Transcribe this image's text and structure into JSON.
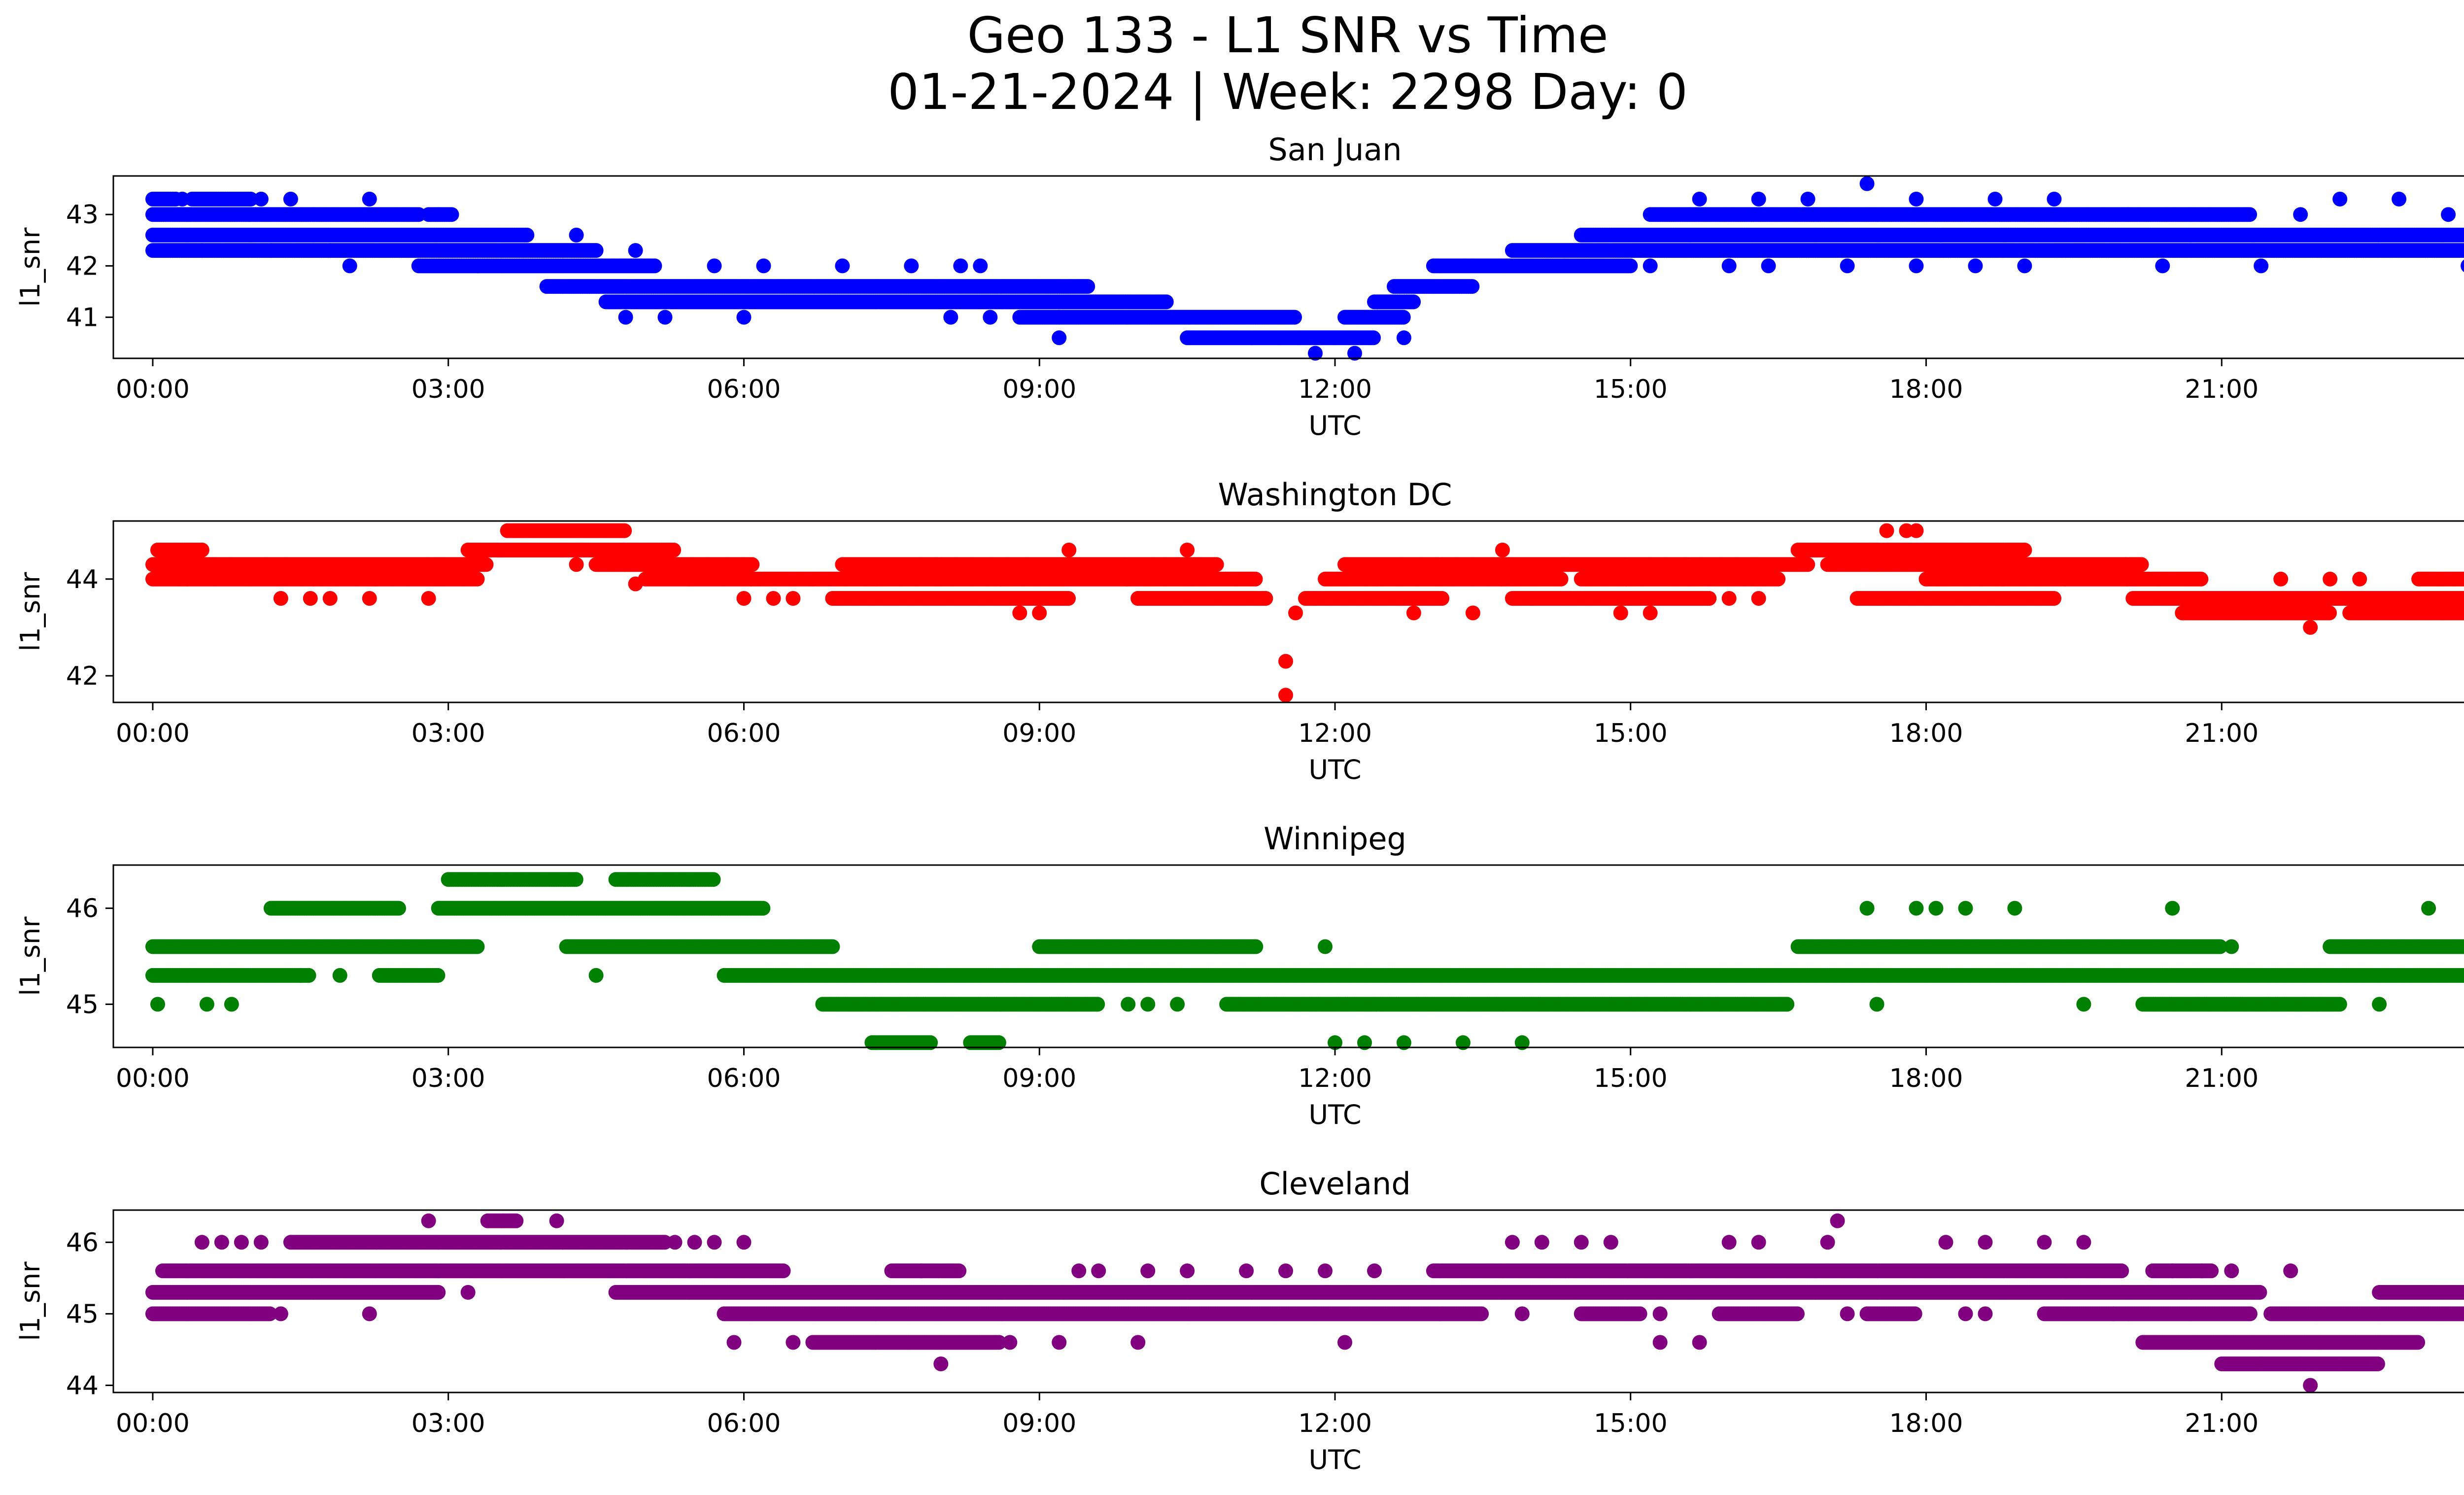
{
  "figure": {
    "title_line1": "Geo 133 - L1 SNR vs Time",
    "title_line2": "01-21-2024 | Week: 2298 Day: 0"
  },
  "chart_data": [
    {
      "type": "scatter",
      "title": "San Juan",
      "xlabel": "UTC",
      "ylabel": "l1_snr",
      "color": "#0000ff",
      "xlim": [
        -0.4,
        24.4
      ],
      "ylim": [
        40.2,
        43.75
      ],
      "x_ticks": [
        "00:00",
        "03:00",
        "06:00",
        "09:00",
        "12:00",
        "15:00",
        "18:00",
        "21:00",
        "00:00"
      ],
      "x_tick_hours": [
        0,
        3,
        6,
        9,
        12,
        15,
        18,
        21,
        24
      ],
      "y_ticks": [
        41,
        42,
        43
      ],
      "bands": [
        {
          "y": 43.3,
          "x": [
            [
              0,
              0.25
            ],
            [
              0.4,
              1.0
            ]
          ]
        },
        {
          "y": 43.0,
          "x": [
            [
              0,
              2.7
            ],
            [
              2.8,
              3.05
            ],
            [
              15.2,
              21.3
            ]
          ]
        },
        {
          "y": 42.6,
          "x": [
            [
              0,
              3.8
            ],
            [
              14.5,
              24
            ]
          ]
        },
        {
          "y": 42.3,
          "x": [
            [
              0,
              4.5
            ],
            [
              13.8,
              24
            ]
          ]
        },
        {
          "y": 42.0,
          "x": [
            [
              2.7,
              5.1
            ],
            [
              13.0,
              15.0
            ]
          ]
        },
        {
          "y": 41.6,
          "x": [
            [
              4.0,
              9.5
            ],
            [
              12.6,
              13.4
            ]
          ]
        },
        {
          "y": 41.3,
          "x": [
            [
              4.6,
              10.3
            ],
            [
              12.4,
              12.8
            ]
          ]
        },
        {
          "y": 41.0,
          "x": [
            [
              8.8,
              11.6
            ],
            [
              12.1,
              12.7
            ]
          ]
        },
        {
          "y": 40.6,
          "x": [
            [
              10.5,
              12.4
            ]
          ]
        }
      ],
      "points": [
        [
          0.3,
          43.3
        ],
        [
          1.1,
          43.3
        ],
        [
          1.4,
          43.3
        ],
        [
          2.2,
          43.3
        ],
        [
          1.2,
          42.3
        ],
        [
          1.8,
          42.3
        ],
        [
          2.0,
          42.0
        ],
        [
          3.3,
          42.0
        ],
        [
          0.5,
          42.3
        ],
        [
          4.3,
          42.6
        ],
        [
          4.9,
          42.3
        ],
        [
          5.7,
          42.0
        ],
        [
          6.2,
          42.0
        ],
        [
          7.0,
          42.0
        ],
        [
          7.7,
          42.0
        ],
        [
          8.2,
          42.0
        ],
        [
          8.4,
          42.0
        ],
        [
          4.8,
          41.0
        ],
        [
          5.2,
          41.0
        ],
        [
          6.0,
          41.0
        ],
        [
          8.1,
          41.0
        ],
        [
          8.5,
          41.0
        ],
        [
          9.2,
          41.0
        ],
        [
          9.2,
          40.6
        ],
        [
          11.8,
          40.3
        ],
        [
          12.2,
          40.3
        ],
        [
          12.7,
          40.6
        ],
        [
          15.2,
          42.0
        ],
        [
          16.0,
          42.0
        ],
        [
          16.4,
          42.0
        ],
        [
          17.2,
          42.0
        ],
        [
          17.9,
          42.0
        ],
        [
          18.5,
          42.0
        ],
        [
          19.0,
          42.0
        ],
        [
          20.4,
          42.0
        ],
        [
          21.4,
          42.0
        ],
        [
          23.5,
          42.0
        ],
        [
          17.4,
          43.6
        ],
        [
          15.7,
          43.3
        ],
        [
          16.3,
          43.3
        ],
        [
          16.8,
          43.3
        ],
        [
          17.9,
          43.3
        ],
        [
          18.7,
          43.3
        ],
        [
          19.3,
          43.3
        ],
        [
          21.8,
          43.0
        ],
        [
          22.2,
          43.3
        ],
        [
          22.8,
          43.3
        ],
        [
          23.3,
          43.0
        ]
      ]
    },
    {
      "type": "scatter",
      "title": "Washington DC",
      "xlabel": "UTC",
      "ylabel": "l1_snr",
      "color": "#ff0000",
      "xlim": [
        -0.4,
        24.4
      ],
      "ylim": [
        41.45,
        45.2
      ],
      "x_ticks": [
        "00:00",
        "03:00",
        "06:00",
        "09:00",
        "12:00",
        "15:00",
        "18:00",
        "21:00",
        "00:00"
      ],
      "x_tick_hours": [
        0,
        3,
        6,
        9,
        12,
        15,
        18,
        21,
        24
      ],
      "y_ticks": [
        42,
        44
      ],
      "bands": [
        {
          "y": 45.0,
          "x": [
            [
              3.6,
              4.8
            ]
          ]
        },
        {
          "y": 44.6,
          "x": [
            [
              0.05,
              0.5
            ],
            [
              3.2,
              5.3
            ],
            [
              16.7,
              19.0
            ]
          ]
        },
        {
          "y": 44.3,
          "x": [
            [
              0,
              3.4
            ],
            [
              4.5,
              6.1
            ],
            [
              7.0,
              10.8
            ],
            [
              12.1,
              16.8
            ],
            [
              17.0,
              20.2
            ]
          ]
        },
        {
          "y": 44.0,
          "x": [
            [
              0,
              3.3
            ],
            [
              5.0,
              11.2
            ],
            [
              11.9,
              14.3
            ],
            [
              14.5,
              16.5
            ],
            [
              18.0,
              20.8
            ],
            [
              23.0,
              24
            ]
          ]
        },
        {
          "y": 43.6,
          "x": [
            [
              6.9,
              9.3
            ],
            [
              10.0,
              11.3
            ],
            [
              11.7,
              13.1
            ],
            [
              13.8,
              15.8
            ],
            [
              17.3,
              19.3
            ],
            [
              20.1,
              24
            ]
          ]
        },
        {
          "y": 43.3,
          "x": [
            [
              20.6,
              22.1
            ],
            [
              22.3,
              23.5
            ]
          ]
        }
      ],
      "points": [
        [
          1.3,
          43.6
        ],
        [
          1.6,
          43.6
        ],
        [
          1.8,
          43.6
        ],
        [
          2.2,
          43.6
        ],
        [
          2.8,
          43.6
        ],
        [
          6.0,
          43.6
        ],
        [
          6.3,
          43.6
        ],
        [
          6.5,
          43.6
        ],
        [
          8.8,
          43.3
        ],
        [
          9.0,
          43.3
        ],
        [
          10.0,
          43.6
        ],
        [
          11.5,
          42.3
        ],
        [
          11.5,
          41.6
        ],
        [
          11.6,
          43.3
        ],
        [
          11.8,
          43.6
        ],
        [
          12.8,
          43.3
        ],
        [
          13.4,
          43.3
        ],
        [
          13.7,
          44.6
        ],
        [
          14.0,
          43.6
        ],
        [
          14.9,
          43.3
        ],
        [
          15.2,
          43.3
        ],
        [
          15.0,
          43.6
        ],
        [
          16.0,
          43.6
        ],
        [
          16.3,
          43.6
        ],
        [
          17.6,
          45.0
        ],
        [
          17.8,
          45.0
        ],
        [
          17.9,
          45.0
        ],
        [
          19.0,
          44.6
        ],
        [
          21.6,
          44.0
        ],
        [
          21.9,
          43.0
        ],
        [
          22.1,
          44.0
        ],
        [
          22.4,
          44.0
        ],
        [
          24.0,
          43.3
        ],
        [
          4.3,
          44.3
        ],
        [
          4.9,
          43.9
        ],
        [
          9.3,
          44.6
        ],
        [
          10.5,
          44.6
        ]
      ]
    },
    {
      "type": "scatter",
      "title": "Winnipeg",
      "xlabel": "UTC",
      "ylabel": "l1_snr",
      "color": "#008000",
      "xlim": [
        -0.4,
        24.4
      ],
      "ylim": [
        44.55,
        46.45
      ],
      "x_ticks": [
        "00:00",
        "03:00",
        "06:00",
        "09:00",
        "12:00",
        "15:00",
        "18:00",
        "21:00",
        "00:00"
      ],
      "x_tick_hours": [
        0,
        3,
        6,
        9,
        12,
        15,
        18,
        21,
        24
      ],
      "y_ticks": [
        45,
        46
      ],
      "bands": [
        {
          "y": 46.3,
          "x": [
            [
              3.0,
              4.3
            ],
            [
              4.7,
              5.7
            ]
          ]
        },
        {
          "y": 46.0,
          "x": [
            [
              1.2,
              2.5
            ],
            [
              2.9,
              6.2
            ]
          ]
        },
        {
          "y": 45.6,
          "x": [
            [
              0,
              3.3
            ],
            [
              4.2,
              6.9
            ],
            [
              9.0,
              11.2
            ],
            [
              16.7,
              21.0
            ],
            [
              22.1,
              24
            ]
          ]
        },
        {
          "y": 45.3,
          "x": [
            [
              0,
              1.6
            ],
            [
              2.3,
              2.9
            ],
            [
              5.8,
              24
            ]
          ]
        },
        {
          "y": 45.0,
          "x": [
            [
              6.8,
              9.6
            ],
            [
              10.9,
              16.6
            ],
            [
              20.2,
              22.2
            ]
          ]
        },
        {
          "y": 44.6,
          "x": [
            [
              7.3,
              7.9
            ],
            [
              8.3,
              8.6
            ]
          ]
        }
      ],
      "points": [
        [
          0.05,
          45.0
        ],
        [
          0.55,
          45.0
        ],
        [
          0.8,
          45.0
        ],
        [
          2.3,
          45.6
        ],
        [
          4.5,
          45.3
        ],
        [
          1.5,
          45.3
        ],
        [
          1.9,
          45.3
        ],
        [
          9.9,
          45.0
        ],
        [
          10.1,
          45.0
        ],
        [
          10.4,
          45.0
        ],
        [
          10.8,
          45.6
        ],
        [
          12.0,
          44.6
        ],
        [
          12.3,
          44.6
        ],
        [
          12.7,
          44.6
        ],
        [
          13.3,
          44.6
        ],
        [
          13.9,
          44.6
        ],
        [
          11.9,
          45.6
        ],
        [
          17.4,
          46.0
        ],
        [
          17.9,
          46.0
        ],
        [
          18.1,
          46.0
        ],
        [
          18.4,
          46.0
        ],
        [
          18.9,
          46.0
        ],
        [
          17.5,
          45.0
        ],
        [
          19.6,
          45.0
        ],
        [
          20.5,
          46.0
        ],
        [
          23.1,
          46.0
        ],
        [
          21.1,
          45.6
        ],
        [
          22.6,
          45.0
        ]
      ]
    },
    {
      "type": "scatter",
      "title": "Cleveland",
      "xlabel": "UTC",
      "ylabel": "l1_snr",
      "color": "#800080",
      "xlim": [
        -0.4,
        24.4
      ],
      "ylim": [
        43.9,
        46.45
      ],
      "x_ticks": [
        "00:00",
        "03:00",
        "06:00",
        "09:00",
        "12:00",
        "15:00",
        "18:00",
        "21:00",
        "00:00"
      ],
      "x_tick_hours": [
        0,
        3,
        6,
        9,
        12,
        15,
        18,
        21,
        24
      ],
      "y_ticks": [
        44,
        45,
        46
      ],
      "bands": [
        {
          "y": 46.3,
          "x": [
            [
              3.4,
              3.7
            ]
          ]
        },
        {
          "y": 46.0,
          "x": [
            [
              1.4,
              5.2
            ]
          ]
        },
        {
          "y": 45.6,
          "x": [
            [
              0.1,
              6.4
            ],
            [
              7.5,
              8.2
            ],
            [
              13.0,
              20.0
            ],
            [
              20.3,
              20.9
            ]
          ]
        },
        {
          "y": 45.3,
          "x": [
            [
              0,
              2.9
            ],
            [
              4.7,
              21.4
            ],
            [
              22.6,
              24
            ]
          ]
        },
        {
          "y": 45.0,
          "x": [
            [
              0,
              1.2
            ],
            [
              5.8,
              13.5
            ],
            [
              14.5,
              15.1
            ],
            [
              15.9,
              16.7
            ],
            [
              17.4,
              17.9
            ],
            [
              19.2,
              21.3
            ],
            [
              21.5,
              24
            ]
          ]
        },
        {
          "y": 44.6,
          "x": [
            [
              6.7,
              8.6
            ],
            [
              20.2,
              23.0
            ]
          ]
        },
        {
          "y": 44.3,
          "x": [
            [
              21.0,
              22.6
            ]
          ]
        }
      ],
      "points": [
        [
          0.5,
          46.0
        ],
        [
          0.7,
          46.0
        ],
        [
          0.9,
          46.0
        ],
        [
          1.1,
          46.0
        ],
        [
          1.3,
          45.0
        ],
        [
          2.2,
          45.0
        ],
        [
          2.8,
          46.3
        ],
        [
          3.2,
          45.3
        ],
        [
          4.1,
          46.3
        ],
        [
          5.3,
          46.0
        ],
        [
          5.5,
          46.0
        ],
        [
          5.7,
          46.0
        ],
        [
          6.0,
          46.0
        ],
        [
          5.9,
          44.6
        ],
        [
          6.5,
          44.6
        ],
        [
          7.8,
          45.6
        ],
        [
          8.0,
          44.3
        ],
        [
          8.7,
          44.6
        ],
        [
          9.2,
          44.6
        ],
        [
          9.4,
          45.6
        ],
        [
          9.6,
          45.6
        ],
        [
          10.0,
          44.6
        ],
        [
          10.1,
          45.6
        ],
        [
          10.5,
          45.6
        ],
        [
          11.1,
          45.6
        ],
        [
          11.5,
          45.6
        ],
        [
          11.9,
          45.6
        ],
        [
          12.1,
          44.6
        ],
        [
          12.4,
          45.6
        ],
        [
          13.9,
          45.0
        ],
        [
          13.8,
          46.0
        ],
        [
          14.1,
          46.0
        ],
        [
          14.5,
          46.0
        ],
        [
          14.8,
          46.0
        ],
        [
          15.3,
          45.0
        ],
        [
          15.3,
          44.6
        ],
        [
          15.7,
          44.6
        ],
        [
          16.0,
          46.0
        ],
        [
          17.1,
          46.3
        ],
        [
          17.2,
          45.0
        ],
        [
          16.3,
          46.0
        ],
        [
          17.0,
          46.0
        ],
        [
          18.2,
          46.0
        ],
        [
          18.6,
          46.0
        ],
        [
          19.2,
          46.0
        ],
        [
          19.6,
          46.0
        ],
        [
          18.4,
          45.0
        ],
        [
          18.6,
          45.0
        ],
        [
          19.9,
          45.0
        ],
        [
          20.5,
          45.6
        ],
        [
          20.8,
          45.6
        ],
        [
          21.1,
          45.6
        ],
        [
          21.7,
          45.6
        ],
        [
          21.4,
          44.3
        ],
        [
          21.8,
          44.3
        ],
        [
          21.9,
          44.0
        ],
        [
          22.2,
          44.3
        ],
        [
          23.7,
          45.6
        ],
        [
          24.0,
          45.6
        ]
      ]
    }
  ]
}
